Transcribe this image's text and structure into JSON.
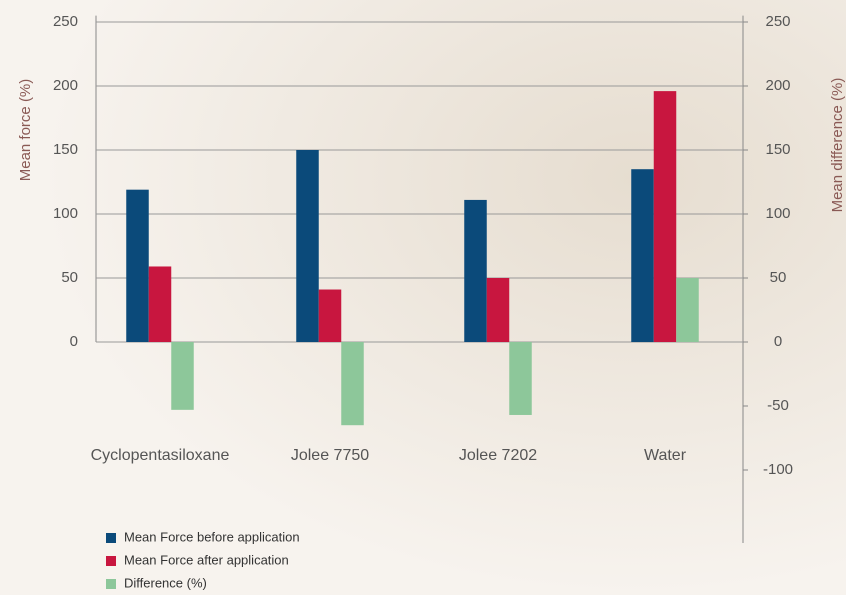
{
  "chart_data": {
    "type": "bar",
    "y_label": "Mean force (%)",
    "y2_label": "Mean difference (%)",
    "categories": [
      "Cyclopentasiloxane",
      "Jolee 7750",
      "Jolee 7202",
      "Water"
    ],
    "series": [
      {
        "name": "Mean Force before application",
        "color": "#0b4a7a",
        "values": [
          119,
          150,
          111,
          135
        ]
      },
      {
        "name": "Mean Force after application",
        "color": "#c8163f",
        "values": [
          59,
          41,
          50,
          196
        ]
      },
      {
        "name": "Difference (%)",
        "color": "#8dc79a",
        "axis": "y2",
        "values": [
          -53,
          -65,
          -57,
          50
        ]
      }
    ],
    "ylim": [
      0,
      255
    ],
    "yticks": [
      0,
      50,
      100,
      150,
      200,
      250
    ],
    "y2lim": [
      -157,
      255
    ],
    "y2ticks": [
      -100,
      -50,
      0,
      50,
      100,
      150,
      200,
      250
    ],
    "grid": true
  }
}
